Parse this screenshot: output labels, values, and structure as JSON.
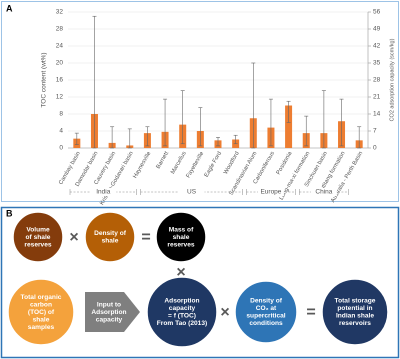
{
  "chart_data": {
    "type": "bar",
    "panel_label": "A",
    "y_label": "TOC content (wt%)",
    "y2_label": "CO2 adsorption capacity (scm/kg)",
    "categories": [
      "Cambay basin",
      "Damodar basin",
      "Cauvery basin",
      "Krishna-Godavari basin",
      "Haynesville",
      "Barnett",
      "Marcellus",
      "Fayetteville",
      "Eagle Ford",
      "Woodford",
      "Scandinavian Alum",
      "Carboniferous",
      "Posidonia",
      "Long-ma-xi formation",
      "Sinchuan basin",
      "Niutitang formation",
      "Australia - Perth Basin"
    ],
    "values": [
      2.2,
      8,
      1.2,
      0.6,
      3.5,
      3.8,
      5.5,
      4,
      1.8,
      2,
      7,
      4.8,
      10,
      3.5,
      3.5,
      6.3,
      1.8
    ],
    "low": [
      0.8,
      0,
      0,
      0,
      0.5,
      0.5,
      1,
      0.5,
      0.5,
      1,
      0,
      0.5,
      6,
      0.5,
      0,
      0.5,
      0
    ],
    "high": [
      3.5,
      31,
      5,
      4.5,
      5,
      11.5,
      13.5,
      9.5,
      2.5,
      3,
      20,
      11.5,
      11,
      7.5,
      13.5,
      11.5,
      5
    ],
    "color": "#ed7d31",
    "region_labels": [
      "India",
      "US",
      "Europe",
      "China"
    ],
    "ylim": [
      0,
      32
    ],
    "yticks": [
      0,
      4,
      8,
      12,
      16,
      20,
      24,
      28,
      32
    ],
    "y2lim": [
      0,
      56
    ],
    "y2ticks": [
      0,
      7,
      14,
      21,
      28,
      35,
      42,
      49,
      56
    ],
    "grid": true
  },
  "diagram": {
    "panel_label": "B",
    "nodes": [
      {
        "lines": [
          "Volume",
          "of shale",
          "reserves"
        ]
      },
      {
        "lines": [
          "Density of",
          "shale"
        ]
      },
      {
        "lines": [
          "Mass of",
          "shale",
          "reserves"
        ]
      },
      {
        "lines": [
          "Total organic",
          "carbon",
          "(TOC) of",
          "shale",
          "samples"
        ]
      },
      {
        "lines": [
          "Input to",
          "Adsorption",
          "capacity"
        ]
      },
      {
        "lines": [
          "Adsorption",
          "capacity",
          "= f (TOC)",
          "From Tao (2013)"
        ]
      },
      {
        "lines": [
          "Density of",
          "CO₂ at",
          "supercritical",
          "conditions"
        ]
      },
      {
        "lines": [
          "Total storage",
          "potential in",
          "Indian shale",
          "reservoirs"
        ]
      }
    ],
    "operators": [
      "×",
      "=",
      "×",
      "×",
      "="
    ]
  }
}
